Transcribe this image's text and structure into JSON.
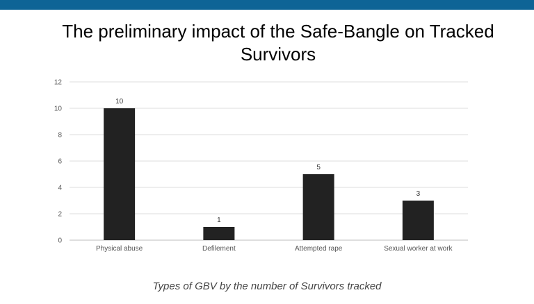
{
  "slide": {
    "accent_color": "#0e6496",
    "caption": "Types of GBV by the number of Survivors tracked"
  },
  "chart_data": {
    "type": "bar",
    "title": "The preliminary impact of the Safe-Bangle on Tracked Survivors",
    "categories": [
      "Physical abuse",
      "Defilement",
      "Attempted rape",
      "Sexual worker at work"
    ],
    "values": [
      10,
      1,
      5,
      3
    ],
    "data_labels": [
      "10",
      "1",
      "5",
      "3"
    ],
    "xlabel": "",
    "ylabel": "",
    "ylim": [
      0,
      12
    ],
    "y_ticks": [
      0,
      2,
      4,
      6,
      8,
      10,
      12
    ],
    "grid": true,
    "legend": "none",
    "bar_color": "#222222"
  }
}
